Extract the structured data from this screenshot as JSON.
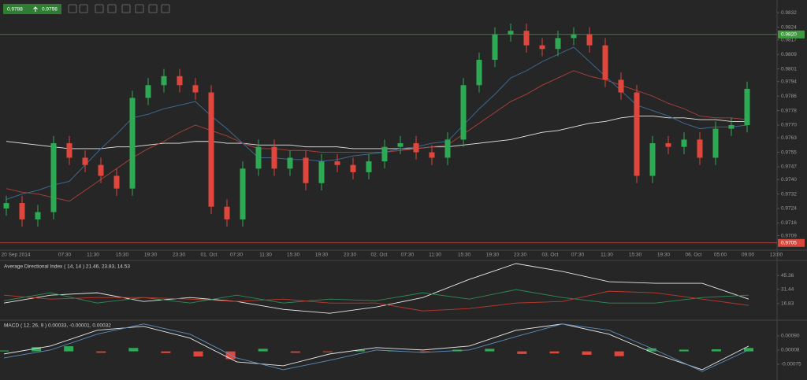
{
  "toolbar": {
    "bid": "0.9788",
    "ask": "0.9798"
  },
  "chart_data": [
    {
      "type": "candlestick",
      "up_color": "#2eaa55",
      "down_color": "#e0473c",
      "open": [
        0.9724,
        0.9727,
        0.9718,
        0.9722,
        0.976,
        0.9752,
        0.9748,
        0.9742,
        0.9735,
        0.9785,
        0.9792,
        0.9797,
        0.9792,
        0.9788,
        0.9725,
        0.9718,
        0.9746,
        0.9758,
        0.9746,
        0.9752,
        0.9738,
        0.975,
        0.9748,
        0.9744,
        0.975,
        0.9758,
        0.976,
        0.9755,
        0.9752,
        0.9762,
        0.9792,
        0.9806,
        0.982,
        0.9822,
        0.9814,
        0.9812,
        0.9818,
        0.982,
        0.9814,
        0.9795,
        0.9788,
        0.9742,
        0.976,
        0.9758,
        0.9762,
        0.9752,
        0.9768,
        0.977
      ],
      "high": [
        0.9731,
        0.9731,
        0.9726,
        0.9764,
        0.9764,
        0.9756,
        0.9752,
        0.9746,
        0.9789,
        0.9796,
        0.9801,
        0.9801,
        0.9796,
        0.9792,
        0.9729,
        0.975,
        0.9762,
        0.9762,
        0.9756,
        0.9756,
        0.9754,
        0.9754,
        0.9752,
        0.9754,
        0.9762,
        0.9764,
        0.9764,
        0.9759,
        0.9766,
        0.9796,
        0.981,
        0.9824,
        0.9826,
        0.9826,
        0.9818,
        0.9822,
        0.9824,
        0.9824,
        0.9818,
        0.9799,
        0.9792,
        0.9764,
        0.9764,
        0.9766,
        0.9766,
        0.9772,
        0.9774,
        0.9794
      ],
      "low": [
        0.972,
        0.9714,
        0.9714,
        0.9718,
        0.9748,
        0.9744,
        0.9738,
        0.9731,
        0.9731,
        0.9781,
        0.9788,
        0.9788,
        0.9784,
        0.9721,
        0.9714,
        0.9714,
        0.9742,
        0.9742,
        0.9742,
        0.9734,
        0.9734,
        0.9744,
        0.974,
        0.974,
        0.9746,
        0.9754,
        0.9751,
        0.9748,
        0.9748,
        0.9758,
        0.9788,
        0.9802,
        0.9816,
        0.981,
        0.9808,
        0.9808,
        0.9814,
        0.981,
        0.9791,
        0.9784,
        0.9738,
        0.9738,
        0.9754,
        0.9754,
        0.9748,
        0.9748,
        0.9764,
        0.9766
      ],
      "close": [
        0.9727,
        0.9718,
        0.9722,
        0.976,
        0.9752,
        0.9748,
        0.9742,
        0.9735,
        0.9785,
        0.9792,
        0.9797,
        0.9792,
        0.9788,
        0.9725,
        0.9718,
        0.9746,
        0.9758,
        0.9746,
        0.9752,
        0.9738,
        0.975,
        0.9748,
        0.9744,
        0.975,
        0.9758,
        0.976,
        0.9755,
        0.9752,
        0.9762,
        0.9792,
        0.9806,
        0.982,
        0.9822,
        0.9814,
        0.9812,
        0.9818,
        0.982,
        0.9814,
        0.9795,
        0.9788,
        0.9742,
        0.976,
        0.9758,
        0.9762,
        0.9752,
        0.9768,
        0.977,
        0.979
      ],
      "series": [
        {
          "color": "#e8e8e8",
          "values": [
            0.9761,
            0.976,
            0.9759,
            0.9758,
            0.9757,
            0.9757,
            0.9757,
            0.9758,
            0.9758,
            0.9759,
            0.976,
            0.976,
            0.9761,
            0.9761,
            0.976,
            0.976,
            0.9759,
            0.9759,
            0.9759,
            0.9758,
            0.9758,
            0.9758,
            0.9757,
            0.9757,
            0.9757,
            0.9757,
            0.9757,
            0.9758,
            0.9758,
            0.9759,
            0.976,
            0.9761,
            0.9762,
            0.9764,
            0.9766,
            0.9767,
            0.9769,
            0.9771,
            0.9772,
            0.9774,
            0.9775,
            0.9775,
            0.9774,
            0.9774,
            0.9773,
            0.9773,
            0.9772,
            0.9772
          ]
        },
        {
          "color": "#b0403a",
          "values": [
            0.9735,
            0.9733,
            0.9732,
            0.973,
            0.9728,
            0.9734,
            0.974,
            0.9746,
            0.9752,
            0.9757,
            0.9761,
            0.9766,
            0.977,
            0.9767,
            0.9764,
            0.976,
            0.9757,
            0.9757,
            0.9756,
            0.9756,
            0.9755,
            0.9755,
            0.9755,
            0.9755,
            0.9755,
            0.9756,
            0.9757,
            0.9758,
            0.9759,
            0.9765,
            0.9771,
            0.9777,
            0.9783,
            0.9787,
            0.9792,
            0.9796,
            0.98,
            0.9797,
            0.9795,
            0.9792,
            0.9789,
            0.9786,
            0.9782,
            0.9779,
            0.9775,
            0.9774,
            0.9774,
            0.9773
          ]
        },
        {
          "color": "#3f6f9a",
          "values": [
            0.9729,
            0.9732,
            0.9734,
            0.9737,
            0.9739,
            0.9748,
            0.9757,
            0.9765,
            0.9774,
            0.9776,
            0.9779,
            0.9781,
            0.9783,
            0.9775,
            0.9768,
            0.976,
            0.9752,
            0.9752,
            0.9751,
            0.9751,
            0.975,
            0.9751,
            0.9753,
            0.9754,
            0.9755,
            0.9757,
            0.9758,
            0.976,
            0.9761,
            0.977,
            0.9779,
            0.9787,
            0.9796,
            0.98,
            0.9805,
            0.9809,
            0.9813,
            0.9805,
            0.9797,
            0.9789,
            0.9781,
            0.9778,
            0.9775,
            0.9771,
            0.9768,
            0.9769,
            0.9769,
            0.977
          ]
        }
      ],
      "hlines": [
        {
          "value": 0.982,
          "label": "0.9820",
          "color": "#3f9a3f"
        },
        {
          "value": 0.9705,
          "label": "0.9705",
          "color": "#d9463b"
        }
      ],
      "ylim": [
        0.9701,
        0.9839
      ],
      "yticks": [
        0.9832,
        0.9824,
        0.9817,
        0.9809,
        0.9801,
        0.9794,
        0.9786,
        0.9778,
        {
          "value": 0.977,
          "label": "0.9770"
        },
        0.9763,
        0.9755,
        0.9747,
        {
          "value": 0.974,
          "label": "0.9740"
        },
        0.9732,
        0.9724,
        0.9716,
        0.9709
      ],
      "grid": false,
      "xlabels": [
        "20 Sep 2014",
        "07:30",
        "11:30",
        "15:30",
        "19:30",
        "23:30",
        "01. Oct",
        "07:30",
        "11:30",
        "15:30",
        "19:30",
        "23:30",
        "02. Oct",
        "07:30",
        "11:30",
        "15:30",
        "19:30",
        "23:30",
        "03. Oct",
        "07:30",
        "11:30",
        "15:30",
        "19:30",
        "06. Oct",
        "05:00",
        "09:00",
        "13:00"
      ]
    },
    {
      "type": "line",
      "title": "Average Directional Index ( 14, 14 ) 21.46, 23.83, 14.53",
      "series": [
        {
          "color": "#e8e8e8",
          "values": [
            17.4,
            25.4,
            27.8,
            19.0,
            23.0,
            19.0,
            11.0,
            7.0,
            13.4,
            23.0,
            41.4,
            57.4,
            49.4,
            39.0,
            37.4,
            37.4,
            21.4
          ]
        },
        {
          "color": "#2e8b57",
          "values": [
            19.8,
            27.8,
            17.4,
            23.0,
            17.4,
            25.4,
            17.4,
            21.4,
            19.8,
            27.8,
            21.4,
            31.0,
            23.0,
            17.4,
            17.4,
            23.0,
            25.4
          ]
        },
        {
          "color": "#c0392b",
          "values": [
            25.4,
            21.4,
            23.0,
            23.0,
            21.4,
            19.0,
            21.4,
            17.4,
            17.4,
            9.4,
            11.8,
            17.4,
            19.0,
            29.4,
            27.8,
            21.4,
            15.0
          ]
        }
      ],
      "ylim": [
        1.6,
        59.8
      ],
      "yticks": [
        45.36,
        31.44,
        16.83
      ]
    },
    {
      "type": "macd",
      "title": "MACD ( 12, 26, 9 ) 0.00033, -0.00001, 0.00032",
      "histogram": {
        "up_color": "#2eaa55",
        "down_color": "#e0473c",
        "values": [
          5e-05,
          0.00025,
          0.0003,
          -8e-05,
          0.0002,
          -0.0001,
          -0.0003,
          -0.00045,
          0.00015,
          -8e-05,
          -5e-05,
          8e-05,
          3e-05,
          -6e-05,
          0.0001,
          0.00015,
          -0.00015,
          -0.00012,
          -0.0002,
          -0.00028,
          0.00018,
          0.0001,
          0.00012,
          0.0002
        ]
      },
      "series": [
        {
          "color": "#e8e8e8",
          "values": [
            -0.00015,
            0.00031,
            0.00123,
            0.00146,
            0.00077,
            -0.00061,
            -0.00084,
            -0.00015,
            0.00022,
            8e-05,
            0.00031,
            0.00123,
            0.0016,
            0.001,
            -0.00015,
            -0.00107,
            0.00031
          ]
        },
        {
          "color": "#5a8fc0",
          "values": [
            -0.00038,
            8e-05,
            0.001,
            0.0016,
            0.001,
            -0.00038,
            -0.00107,
            -0.00052,
            8e-05,
            -6e-05,
            8e-05,
            0.00086,
            0.0016,
            0.00123,
            8e-05,
            -0.00117,
            8e-05
          ]
        }
      ],
      "ylim": [
        -0.00167,
        0.00168
      ],
      "yticks": [
        {
          "value": 0.0009,
          "label": "0.00090"
        },
        8e-05,
        -0.00075
      ]
    }
  ]
}
